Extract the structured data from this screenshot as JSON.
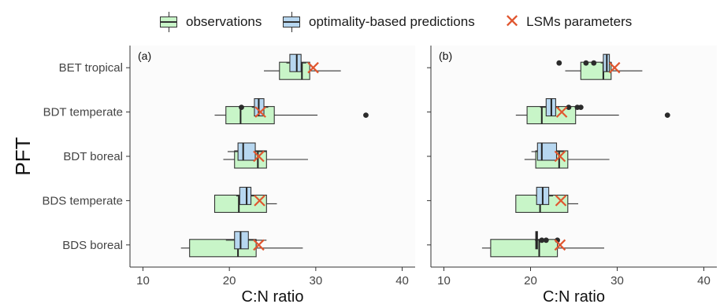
{
  "legend": {
    "observations": "observations",
    "predictions": "optimality-based predictions",
    "lsm": "LSMs parameters"
  },
  "colors": {
    "observations": "#c8f5c8",
    "predictions": "#b7d7f0",
    "lsm_marker": "#e0562f",
    "panel_bg": "#fbfbfb",
    "outline": "#333333"
  },
  "chart_data": [
    {
      "type": "boxplot",
      "panel_label": "(a)",
      "ylabel": "PFT",
      "xlabel": "C:N ratio",
      "xlim": [
        8.5,
        41.5
      ],
      "xticks": [
        10,
        20,
        30,
        40
      ],
      "categories": [
        "BET tropical",
        "BDT temperate",
        "BDT boreal",
        "BDS temperate",
        "BDS boreal"
      ],
      "series": [
        {
          "name": "observations",
          "boxes": [
            {
              "whisker_low": 24.0,
              "q1": 25.8,
              "median": 28.4,
              "q3": 29.3,
              "whisker_high": 32.9,
              "outliers": []
            },
            {
              "whisker_low": 18.3,
              "q1": 19.6,
              "median": 21.3,
              "q3": 25.2,
              "whisker_high": 30.2,
              "outliers": [
                35.8
              ]
            },
            {
              "whisker_low": 19.3,
              "q1": 20.6,
              "median": 23.3,
              "q3": 24.3,
              "whisker_high": 29.1,
              "outliers": []
            },
            {
              "whisker_low": 18.3,
              "q1": 18.3,
              "median": 21.1,
              "q3": 24.3,
              "whisker_high": 25.5,
              "outliers": []
            },
            {
              "whisker_low": 14.4,
              "q1": 15.4,
              "median": 21.0,
              "q3": 23.1,
              "whisker_high": 28.5,
              "outliers": []
            }
          ]
        },
        {
          "name": "optimality-based predictions",
          "boxes": [
            {
              "whisker_low": 26.6,
              "q1": 27.0,
              "median": 27.8,
              "q3": 28.3,
              "whisker_high": 28.9,
              "outliers": []
            },
            {
              "whisker_low": 22.6,
              "q1": 22.9,
              "median": 23.4,
              "q3": 24.0,
              "whisker_high": 24.5,
              "outliers": [
                21.4
              ]
            },
            {
              "whisker_low": 19.8,
              "q1": 21.0,
              "median": 21.6,
              "q3": 23.0,
              "whisker_high": 24.3,
              "outliers": []
            },
            {
              "whisker_low": 20.8,
              "q1": 21.2,
              "median": 22.0,
              "q3": 22.5,
              "whisker_high": 23.0,
              "outliers": []
            },
            {
              "whisker_low": 19.6,
              "q1": 20.6,
              "median": 21.3,
              "q3": 22.2,
              "whisker_high": 24.3,
              "outliers": []
            }
          ]
        },
        {
          "name": "LSMs parameters",
          "points": [
            29.7,
            23.6,
            23.4,
            23.5,
            23.4
          ]
        }
      ]
    },
    {
      "type": "boxplot",
      "panel_label": "(b)",
      "xlabel": "C:N ratio",
      "xlim": [
        8.5,
        41.5
      ],
      "xticks": [
        10,
        20,
        30,
        40
      ],
      "categories": [
        "BET tropical",
        "BDT temperate",
        "BDT boreal",
        "BDS temperate",
        "BDS boreal"
      ],
      "series": [
        {
          "name": "observations",
          "boxes": [
            {
              "whisker_low": 24.0,
              "q1": 25.8,
              "median": 28.4,
              "q3": 29.3,
              "whisker_high": 32.9,
              "outliers": []
            },
            {
              "whisker_low": 18.3,
              "q1": 19.6,
              "median": 21.3,
              "q3": 25.2,
              "whisker_high": 30.2,
              "outliers": [
                35.8
              ]
            },
            {
              "whisker_low": 19.3,
              "q1": 20.6,
              "median": 23.3,
              "q3": 24.3,
              "whisker_high": 29.1,
              "outliers": []
            },
            {
              "whisker_low": 18.3,
              "q1": 18.3,
              "median": 21.1,
              "q3": 24.3,
              "whisker_high": 25.5,
              "outliers": []
            },
            {
              "whisker_low": 14.4,
              "q1": 15.4,
              "median": 21.0,
              "q3": 23.1,
              "whisker_high": 28.5,
              "outliers": []
            }
          ]
        },
        {
          "name": "optimality-based predictions",
          "boxes": [
            {
              "whisker_low": 28.1,
              "q1": 28.4,
              "median": 28.8,
              "q3": 29.1,
              "whisker_high": 29.4,
              "outliers": [
                23.3,
                26.4,
                27.3
              ]
            },
            {
              "whisker_low": 21.1,
              "q1": 21.8,
              "median": 22.4,
              "q3": 22.9,
              "whisker_high": 23.3,
              "outliers": [
                24.4,
                25.4,
                25.8
              ]
            },
            {
              "whisker_low": 20.1,
              "q1": 20.8,
              "median": 21.3,
              "q3": 23.0,
              "whisker_high": 23.9,
              "outliers": []
            },
            {
              "whisker_low": 20.6,
              "q1": 20.7,
              "median": 21.4,
              "q3": 22.1,
              "whisker_high": 22.6,
              "outliers": []
            },
            {
              "whisker_low": 20.5,
              "q1": 20.6,
              "median": 20.7,
              "q3": 20.8,
              "whisker_high": 20.9,
              "outliers": [
                21.3,
                21.8,
                23.1
              ]
            }
          ]
        },
        {
          "name": "LSMs parameters",
          "points": [
            29.7,
            23.6,
            23.4,
            23.5,
            23.4
          ]
        }
      ]
    }
  ]
}
